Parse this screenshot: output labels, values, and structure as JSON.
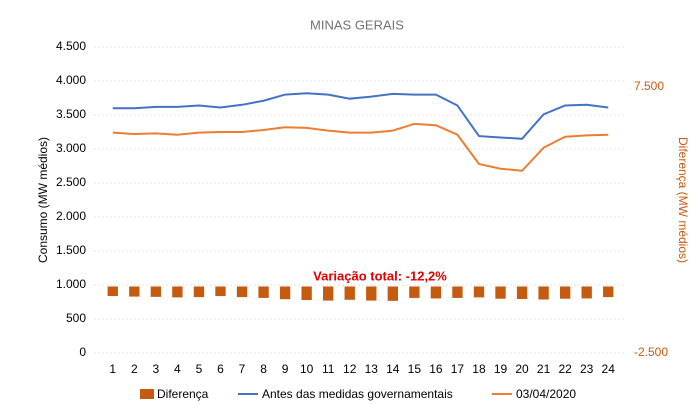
{
  "chart_data": {
    "type": "combo",
    "title": "MINAS GERAIS",
    "ylabel": "Consumo (MW médios)",
    "y2label": "Diferença (MW médios)",
    "annotation": "Variação total: -12,2%",
    "categories": [
      "1",
      "2",
      "3",
      "4",
      "5",
      "6",
      "7",
      "8",
      "9",
      "10",
      "11",
      "12",
      "13",
      "14",
      "15",
      "16",
      "17",
      "18",
      "19",
      "20",
      "21",
      "22",
      "23",
      "24"
    ],
    "series": [
      {
        "name": "Diferença",
        "type": "bar",
        "axis": "y2",
        "color": "#c55a11",
        "values": [
          -360,
          -380,
          -390,
          -410,
          -400,
          -360,
          -400,
          -430,
          -480,
          -510,
          -530,
          -500,
          -530,
          -540,
          -430,
          -450,
          -430,
          -410,
          -460,
          -470,
          -490,
          -460,
          -450,
          -400
        ]
      },
      {
        "name": "Antes das medidas governamentais",
        "type": "line",
        "color": "#4472c4",
        "values": [
          3600,
          3600,
          3620,
          3620,
          3640,
          3610,
          3650,
          3710,
          3800,
          3820,
          3800,
          3740,
          3770,
          3810,
          3800,
          3800,
          3640,
          3190,
          3170,
          3150,
          3510,
          3640,
          3650,
          3610
        ]
      },
      {
        "name": "03/04/2020",
        "type": "line",
        "color": "#ed7d31",
        "values": [
          3240,
          3220,
          3230,
          3210,
          3240,
          3250,
          3250,
          3280,
          3320,
          3310,
          3270,
          3240,
          3240,
          3270,
          3370,
          3350,
          3210,
          2780,
          2710,
          2680,
          3020,
          3180,
          3200,
          3210
        ]
      }
    ],
    "ylim": [
      0,
      4500
    ],
    "yticks": [
      0,
      500,
      {
        "value": 1000,
        "label": "1.000"
      },
      {
        "value": 1500,
        "label": "1.500"
      },
      {
        "value": 2000,
        "label": "2.000"
      },
      {
        "value": 2500,
        "label": "2.500"
      },
      {
        "value": 3000,
        "label": "3.000"
      },
      {
        "value": 3500,
        "label": "3.500"
      },
      {
        "value": 4000,
        "label": "4.000"
      },
      {
        "value": 4500,
        "label": "4.500"
      }
    ],
    "y2lim": [
      -2500,
      9000
    ],
    "y2ticks": [
      {
        "value": -2500,
        "label": "-2.500"
      },
      {
        "value": 7500,
        "label": "7.500"
      }
    ],
    "grid": true
  }
}
